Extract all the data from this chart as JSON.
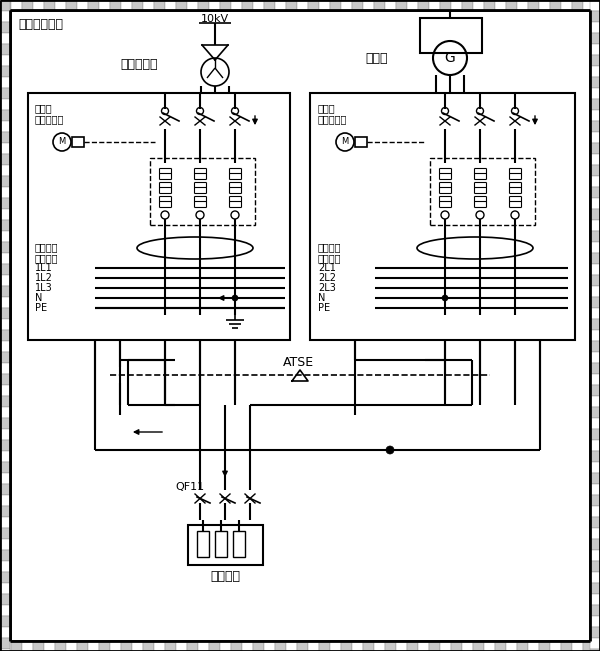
{
  "bg": "#ffffff",
  "lc": "#000000",
  "title": "同一座配电所",
  "v_label": "10kV",
  "transformer_label": "电力变压器",
  "generator_label": "发电机",
  "cb1_label": "变压器\n进线断路器",
  "cb2_label": "发电机\n进线断路器",
  "gfci1_label": "接地故障\n电流检测",
  "gfci2_label": "接地故障\n电流检测",
  "atse_label": "ATSE",
  "qf_label": "QF11",
  "load_label": "用电设备",
  "bus1": [
    "1L1",
    "1L2",
    "1L3",
    "N",
    "PE"
  ],
  "bus2": [
    "2L1",
    "2L2",
    "2L3",
    "N",
    "PE"
  ],
  "fig_w": 6.0,
  "fig_h": 6.51
}
